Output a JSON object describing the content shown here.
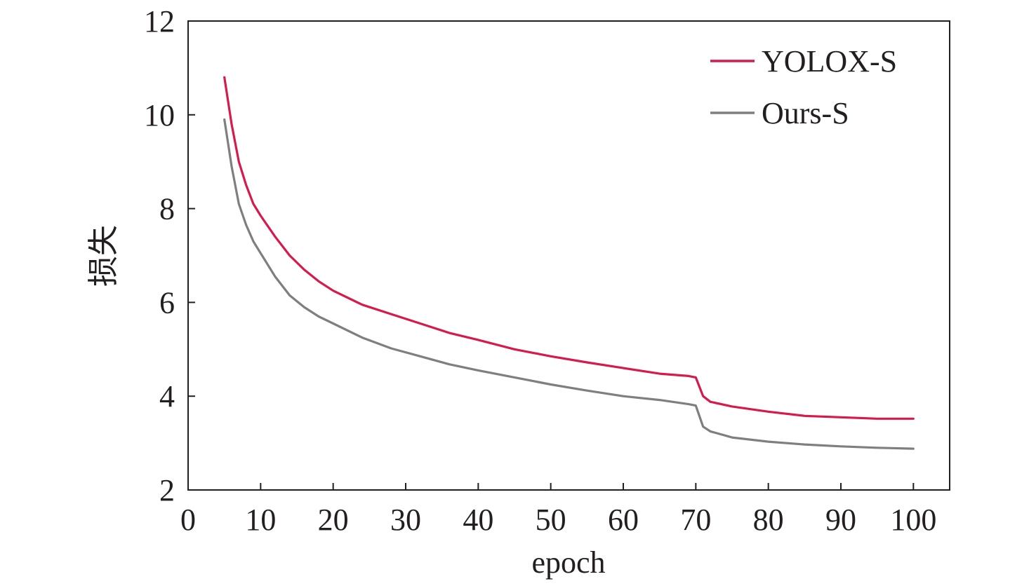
{
  "chart_data": {
    "type": "line",
    "title": "",
    "xlabel": "epoch",
    "ylabel": "损失",
    "xlim": [
      0,
      105
    ],
    "ylim": [
      2,
      12
    ],
    "xticks": [
      0,
      10,
      20,
      30,
      40,
      50,
      60,
      70,
      80,
      90,
      100
    ],
    "yticks": [
      2,
      4,
      6,
      8,
      10,
      12
    ],
    "xtick_labels": [
      "0",
      "10",
      "20",
      "30",
      "40",
      "50",
      "60",
      "70",
      "80",
      "90",
      "100"
    ],
    "ytick_labels": [
      "2",
      "4",
      "6",
      "8",
      "10",
      "12"
    ],
    "grid": false,
    "legend_position": "top-right",
    "x": [
      5,
      6,
      7,
      8,
      9,
      10,
      12,
      14,
      16,
      18,
      20,
      24,
      28,
      32,
      36,
      40,
      45,
      50,
      55,
      60,
      65,
      69,
      70,
      71,
      72,
      75,
      80,
      85,
      90,
      95,
      100
    ],
    "series": [
      {
        "name": "YOLOX-S",
        "color": "#d7194b",
        "values": [
          10.8,
          9.8,
          9.0,
          8.5,
          8.1,
          7.85,
          7.4,
          7.0,
          6.7,
          6.45,
          6.25,
          5.95,
          5.75,
          5.55,
          5.35,
          5.2,
          5.0,
          4.85,
          4.72,
          4.6,
          4.48,
          4.43,
          4.4,
          4.0,
          3.88,
          3.78,
          3.67,
          3.58,
          3.55,
          3.52,
          3.52
        ]
      },
      {
        "name": "Ours-S",
        "color": "#7f7f7f",
        "values": [
          9.9,
          8.9,
          8.1,
          7.65,
          7.3,
          7.05,
          6.55,
          6.15,
          5.9,
          5.7,
          5.55,
          5.25,
          5.02,
          4.85,
          4.68,
          4.55,
          4.4,
          4.25,
          4.12,
          4.0,
          3.92,
          3.83,
          3.8,
          3.35,
          3.25,
          3.12,
          3.03,
          2.97,
          2.93,
          2.9,
          2.88
        ]
      }
    ]
  }
}
